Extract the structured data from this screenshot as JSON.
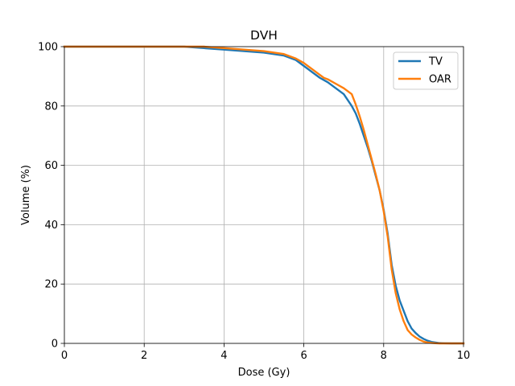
{
  "chart_data": {
    "type": "line",
    "title": "DVH",
    "xlabel": "Dose (Gy)",
    "ylabel": "Volume (%)",
    "xlim": [
      0,
      10
    ],
    "ylim": [
      0,
      100
    ],
    "xticks": [
      0,
      2,
      4,
      6,
      8,
      10
    ],
    "yticks": [
      0,
      20,
      40,
      60,
      80,
      100
    ],
    "grid": true,
    "legend_position": "top-right",
    "series": [
      {
        "name": "TV",
        "color": "#1f77b4",
        "x": [
          0,
          2.5,
          3.0,
          3.5,
          4.0,
          4.5,
          5.0,
          5.5,
          5.8,
          6.0,
          6.2,
          6.4,
          6.6,
          6.8,
          7.0,
          7.2,
          7.3,
          7.4,
          7.5,
          7.6,
          7.7,
          7.8,
          7.9,
          8.0,
          8.1,
          8.2,
          8.3,
          8.4,
          8.5,
          8.6,
          8.7,
          8.8,
          8.9,
          9.0,
          9.1,
          9.2,
          9.3,
          9.4,
          9.5,
          9.7,
          10.0
        ],
        "y": [
          100,
          100,
          100,
          99.5,
          99,
          98.5,
          98,
          97,
          95.5,
          93.5,
          91.5,
          89.5,
          88,
          86,
          84,
          80,
          77.5,
          74,
          70,
          66,
          61.5,
          56.5,
          51.5,
          45,
          37,
          26.5,
          19.5,
          14.5,
          11,
          7.5,
          5,
          3.5,
          2.3,
          1.5,
          0.9,
          0.5,
          0.3,
          0.1,
          0.05,
          0,
          0
        ]
      },
      {
        "name": "OAR",
        "color": "#ff7f0e",
        "x": [
          0,
          2.5,
          3.0,
          3.5,
          4.0,
          4.5,
          5.0,
          5.5,
          5.8,
          6.0,
          6.2,
          6.4,
          6.5,
          6.6,
          6.8,
          7.0,
          7.2,
          7.3,
          7.4,
          7.5,
          7.6,
          7.7,
          7.8,
          7.9,
          8.0,
          8.1,
          8.2,
          8.3,
          8.4,
          8.5,
          8.6,
          8.7,
          8.8,
          8.9,
          9.0,
          9.1,
          9.2,
          9.3,
          9.4,
          9.5,
          9.7,
          10.0
        ],
        "y": [
          100,
          100,
          100,
          100,
          99.5,
          99,
          98.5,
          97.5,
          96,
          94.5,
          92.5,
          90.5,
          89.5,
          89,
          87.5,
          86,
          84,
          80.5,
          76.5,
          72,
          67,
          62,
          57,
          51.5,
          44.5,
          36,
          25,
          17,
          11.5,
          7.5,
          4.5,
          3,
          2,
          1.2,
          0.6,
          0.3,
          0.15,
          0.05,
          0,
          0,
          0,
          0
        ]
      }
    ]
  }
}
